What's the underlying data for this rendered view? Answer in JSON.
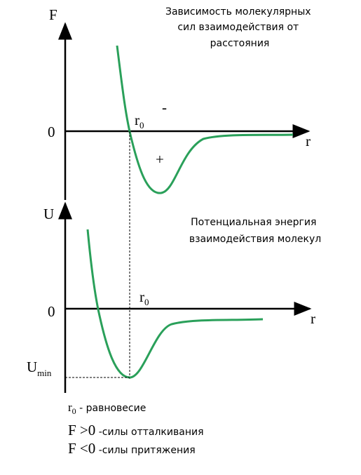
{
  "force_graph": {
    "title_lines": [
      "Зависимость  молекулярных",
      "сил  взаимодействия  от",
      "расстояния"
    ],
    "y_axis_label": "F",
    "zero_label": "0",
    "x_axis_label": "r",
    "r0": {
      "base": "r",
      "sub": "0"
    },
    "minus_sign": "-",
    "plus_sign": "+"
  },
  "energy_graph": {
    "title_lines": [
      "Потенциальная  энергия",
      "взаимодействия  молекул"
    ],
    "y_axis_label": "U",
    "zero_label": "0",
    "x_axis_label": "r",
    "r0": {
      "base": "r",
      "sub": "0"
    },
    "umin": {
      "base": "U",
      "sub": "min"
    }
  },
  "legend": {
    "r0": {
      "base": "r",
      "sub": "0",
      "text": " - равновесие"
    },
    "repulsion": {
      "formula": "F >0",
      "text": " -силы  отталкивания"
    },
    "attraction": {
      "formula": "F <0",
      "text": " -силы  притяжения"
    }
  }
}
